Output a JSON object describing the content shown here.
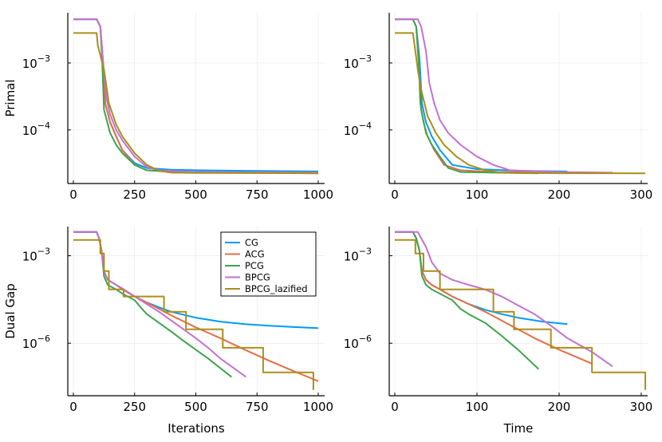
{
  "figure": {
    "series_names": [
      "CG",
      "ACG",
      "PCG",
      "BPCG",
      "BPCG_lazified"
    ],
    "colors": {
      "CG": "#009AFA",
      "ACG": "#E36F47",
      "PCG": "#3EA44E",
      "BPCG": "#C271D2",
      "BPCG_lazified": "#AC8E18"
    }
  },
  "chart_data": [
    {
      "type": "line",
      "panel": "top-left",
      "xlabel": "",
      "ylabel": "Primal",
      "xticks": [
        "0",
        "250",
        "500",
        "750",
        "1000"
      ],
      "yticks": [
        "10^-3",
        "10^-4"
      ],
      "xlim": [
        0,
        1000
      ],
      "log_y": true,
      "grid": true,
      "series": [
        {
          "name": "CG",
          "x": [
            0,
            95,
            110,
            120,
            130,
            150,
            175,
            200,
            250,
            300,
            400,
            500,
            700,
            1000
          ],
          "y": [
            0.0045,
            0.0045,
            0.0035,
            0.0012,
            0.00025,
            0.00013,
            8e-05,
            5e-05,
            3.2e-05,
            2.7e-05,
            2.55e-05,
            2.5e-05,
            2.45e-05,
            2.4e-05
          ]
        },
        {
          "name": "ACG",
          "x": [
            0,
            95,
            110,
            120,
            130,
            150,
            175,
            200,
            250,
            300,
            400,
            500,
            700,
            1000
          ],
          "y": [
            0.0045,
            0.0045,
            0.0035,
            0.0012,
            0.00025,
            0.00013,
            8e-05,
            5e-05,
            3e-05,
            2.5e-05,
            2.4e-05,
            2.35e-05,
            2.32e-05,
            2.3e-05
          ]
        },
        {
          "name": "PCG",
          "x": [
            0,
            95,
            110,
            118,
            125,
            150,
            175,
            200,
            250,
            300,
            400,
            1000
          ],
          "y": [
            0.0045,
            0.0045,
            0.0035,
            0.001,
            0.0002,
            9e-05,
            6e-05,
            4.5e-05,
            3e-05,
            2.5e-05,
            2.35e-05,
            2.25e-05
          ]
        },
        {
          "name": "BPCG",
          "x": [
            0,
            95,
            110,
            120,
            135,
            150,
            175,
            200,
            250,
            300,
            350,
            500,
            1000
          ],
          "y": [
            0.0045,
            0.0045,
            0.0035,
            0.0012,
            0.0003,
            0.00017,
            0.0001,
            7e-05,
            4e-05,
            2.8e-05,
            2.5e-05,
            2.35e-05,
            2.3e-05
          ]
        },
        {
          "name": "BPCG_lazified",
          "x": [
            0,
            95,
            100,
            110,
            125,
            145,
            175,
            200,
            250,
            300,
            350,
            400,
            500,
            1000
          ],
          "y": [
            0.0028,
            0.0028,
            0.0018,
            0.0013,
            0.0008,
            0.00025,
            0.00012,
            8e-05,
            4.5e-05,
            3e-05,
            2.45e-05,
            2.3e-05,
            2.28e-05,
            2.25e-05
          ]
        }
      ]
    },
    {
      "type": "line",
      "panel": "top-right",
      "xlabel": "",
      "ylabel": "",
      "xticks": [
        "0",
        "100",
        "200",
        "300"
      ],
      "yticks": [
        "10^-3",
        "10^-4"
      ],
      "xlim": [
        0,
        300
      ],
      "log_y": true,
      "grid": true,
      "series": [
        {
          "name": "CG",
          "x": [
            0,
            22,
            26,
            30,
            33,
            38,
            45,
            55,
            70,
            100,
            150,
            210
          ],
          "y": [
            0.0045,
            0.0045,
            0.0035,
            0.0012,
            0.00025,
            0.00013,
            8e-05,
            5e-05,
            3e-05,
            2.6e-05,
            2.45e-05,
            2.4e-05
          ]
        },
        {
          "name": "ACG",
          "x": [
            0,
            22,
            26,
            29,
            31,
            35,
            40,
            48,
            60,
            80,
            120,
            200,
            240
          ],
          "y": [
            0.0045,
            0.0045,
            0.0035,
            0.0012,
            0.00025,
            0.00013,
            8e-05,
            5e-05,
            3e-05,
            2.5e-05,
            2.35e-05,
            2.3e-05,
            2.3e-05
          ]
        },
        {
          "name": "PCG",
          "x": [
            0,
            22,
            26,
            29,
            32,
            38,
            45,
            55,
            65,
            80,
            120,
            175
          ],
          "y": [
            0.0045,
            0.0045,
            0.0035,
            0.001,
            0.0002,
            9e-05,
            6e-05,
            4e-05,
            2.7e-05,
            2.35e-05,
            2.3e-05,
            2.25e-05
          ]
        },
        {
          "name": "BPCG",
          "x": [
            0,
            28,
            32,
            38,
            42,
            48,
            55,
            65,
            80,
            100,
            120,
            140,
            200,
            265
          ],
          "y": [
            0.0045,
            0.0045,
            0.0035,
            0.0015,
            0.0005,
            0.00025,
            0.00014,
            9e-05,
            6e-05,
            4e-05,
            3e-05,
            2.5e-05,
            2.35e-05,
            2.3e-05
          ]
        },
        {
          "name": "BPCG_lazified",
          "x": [
            0,
            22,
            25,
            28,
            32,
            40,
            50,
            60,
            75,
            90,
            110,
            130,
            200,
            305
          ],
          "y": [
            0.0028,
            0.0028,
            0.0015,
            0.0008,
            0.0004,
            0.00016,
            9e-05,
            6e-05,
            4e-05,
            3e-05,
            2.5e-05,
            2.3e-05,
            2.26e-05,
            2.25e-05
          ]
        }
      ]
    },
    {
      "type": "line",
      "panel": "bottom-left",
      "xlabel": "Iterations",
      "ylabel": "Dual Gap",
      "xticks": [
        "0",
        "250",
        "500",
        "750",
        "1000"
      ],
      "yticks": [
        "10^-3",
        "10^-6"
      ],
      "xlim": [
        0,
        1000
      ],
      "log_y": true,
      "grid": true,
      "legend": "top-right",
      "series": [
        {
          "name": "CG",
          "x": [
            0,
            95,
            105,
            115,
            125,
            140,
            175,
            200,
            250,
            300,
            350,
            400,
            500,
            600,
            700,
            800,
            900,
            1000
          ],
          "y": [
            0.0065,
            0.0065,
            0.004,
            0.0015,
            0.0003,
            0.00015,
            0.0001,
            7.5e-05,
            4e-05,
            2.5e-05,
            1.7e-05,
            1.2e-05,
            7.5e-06,
            5.5e-06,
            4.5e-06,
            4e-06,
            3.6e-06,
            3.3e-06
          ]
        },
        {
          "name": "ACG",
          "x": [
            0,
            95,
            105,
            115,
            125,
            140,
            175,
            200,
            250,
            300,
            350,
            400,
            500,
            600,
            700,
            800,
            900,
            1000
          ],
          "y": [
            0.0065,
            0.0065,
            0.004,
            0.0015,
            0.0003,
            0.00015,
            0.0001,
            7.5e-05,
            4e-05,
            2.5e-05,
            1.5e-05,
            9e-06,
            3.5e-06,
            1.5e-06,
            6e-07,
            2.5e-07,
            1.1e-07,
            5e-08
          ]
        },
        {
          "name": "PCG",
          "x": [
            0,
            95,
            105,
            115,
            125,
            140,
            175,
            200,
            250,
            280,
            300,
            350,
            400,
            450,
            500,
            550,
            600,
            646
          ],
          "y": [
            0.0065,
            0.0065,
            0.004,
            0.0015,
            0.0002,
            0.0001,
            7e-05,
            5e-05,
            3e-05,
            1.5e-05,
            1e-05,
            5e-06,
            2.5e-06,
            1.2e-06,
            6e-07,
            3e-07,
            1.4e-07,
            7e-08
          ]
        },
        {
          "name": "BPCG",
          "x": [
            0,
            95,
            105,
            115,
            125,
            140,
            175,
            200,
            250,
            300,
            350,
            400,
            450,
            500,
            550,
            600,
            650,
            705
          ],
          "y": [
            0.0065,
            0.0065,
            0.004,
            0.0015,
            0.0003,
            0.00015,
            0.0001,
            7e-05,
            4e-05,
            2.2e-05,
            1.2e-05,
            6e-06,
            3e-06,
            1.5e-06,
            7e-07,
            3e-07,
            1.5e-07,
            7e-08
          ]
        },
        {
          "name": "BPCG_lazified",
          "x": [
            0,
            110,
            110,
            125,
            125,
            145,
            145,
            205,
            205,
            370,
            370,
            460,
            460,
            610,
            610,
            775,
            775,
            980,
            980
          ],
          "y": [
            0.0035,
            0.0035,
            0.0012,
            0.0012,
            0.0003,
            0.0003,
            7e-05,
            7e-05,
            4e-05,
            4e-05,
            1.2e-05,
            1.2e-05,
            3e-06,
            3e-06,
            7e-07,
            7e-07,
            1e-07,
            1e-07,
            2.5e-08
          ]
        }
      ]
    },
    {
      "type": "line",
      "panel": "bottom-right",
      "xlabel": "Time",
      "ylabel": "",
      "xticks": [
        "0",
        "100",
        "200",
        "300"
      ],
      "yticks": [
        "10^-3",
        "10^-6"
      ],
      "xlim": [
        0,
        300
      ],
      "log_y": true,
      "grid": true,
      "series": [
        {
          "name": "CG",
          "x": [
            0,
            22,
            26,
            30,
            33,
            38,
            45,
            55,
            70,
            90,
            110,
            130,
            150,
            180,
            210
          ],
          "y": [
            0.0065,
            0.0065,
            0.004,
            0.0015,
            0.0003,
            0.00015,
            0.0001,
            7e-05,
            4e-05,
            2.2e-05,
            1.4e-05,
            1e-05,
            7.5e-06,
            5.5e-06,
            4.5e-06
          ]
        },
        {
          "name": "ACG",
          "x": [
            0,
            22,
            26,
            30,
            33,
            38,
            45,
            55,
            70,
            90,
            110,
            130,
            150,
            170,
            200,
            240
          ],
          "y": [
            0.0065,
            0.0065,
            0.004,
            0.0015,
            0.0003,
            0.00015,
            0.0001,
            7e-05,
            4e-05,
            2.2e-05,
            1.2e-05,
            6e-06,
            3e-06,
            1.5e-06,
            6e-07,
            2e-07
          ]
        },
        {
          "name": "PCG",
          "x": [
            0,
            22,
            26,
            30,
            33,
            38,
            45,
            55,
            70,
            80,
            90,
            110,
            130,
            150,
            175
          ],
          "y": [
            0.0065,
            0.0065,
            0.004,
            0.0015,
            0.0002,
            0.0001,
            7e-05,
            5e-05,
            3e-05,
            1.5e-05,
            1e-05,
            5e-06,
            1.8e-06,
            6e-07,
            1.3e-07
          ]
        },
        {
          "name": "BPCG",
          "x": [
            0,
            28,
            32,
            38,
            45,
            55,
            70,
            90,
            110,
            130,
            150,
            170,
            190,
            210,
            240,
            265
          ],
          "y": [
            0.0065,
            0.0065,
            0.004,
            0.002,
            0.0006,
            0.00025,
            0.00015,
            0.0001,
            7e-05,
            4e-05,
            2e-05,
            1e-05,
            4e-06,
            1.5e-06,
            5e-07,
            1.6e-07
          ]
        },
        {
          "name": "BPCG_lazified",
          "x": [
            0,
            25,
            25,
            35,
            35,
            55,
            55,
            120,
            120,
            145,
            145,
            190,
            190,
            240,
            240,
            305,
            305
          ],
          "y": [
            0.0035,
            0.0035,
            0.0012,
            0.0012,
            0.0003,
            0.0003,
            7e-05,
            7e-05,
            1.2e-05,
            1.2e-05,
            3e-06,
            3e-06,
            7e-07,
            7e-07,
            1e-07,
            1e-07,
            2.5e-08
          ]
        }
      ]
    }
  ]
}
